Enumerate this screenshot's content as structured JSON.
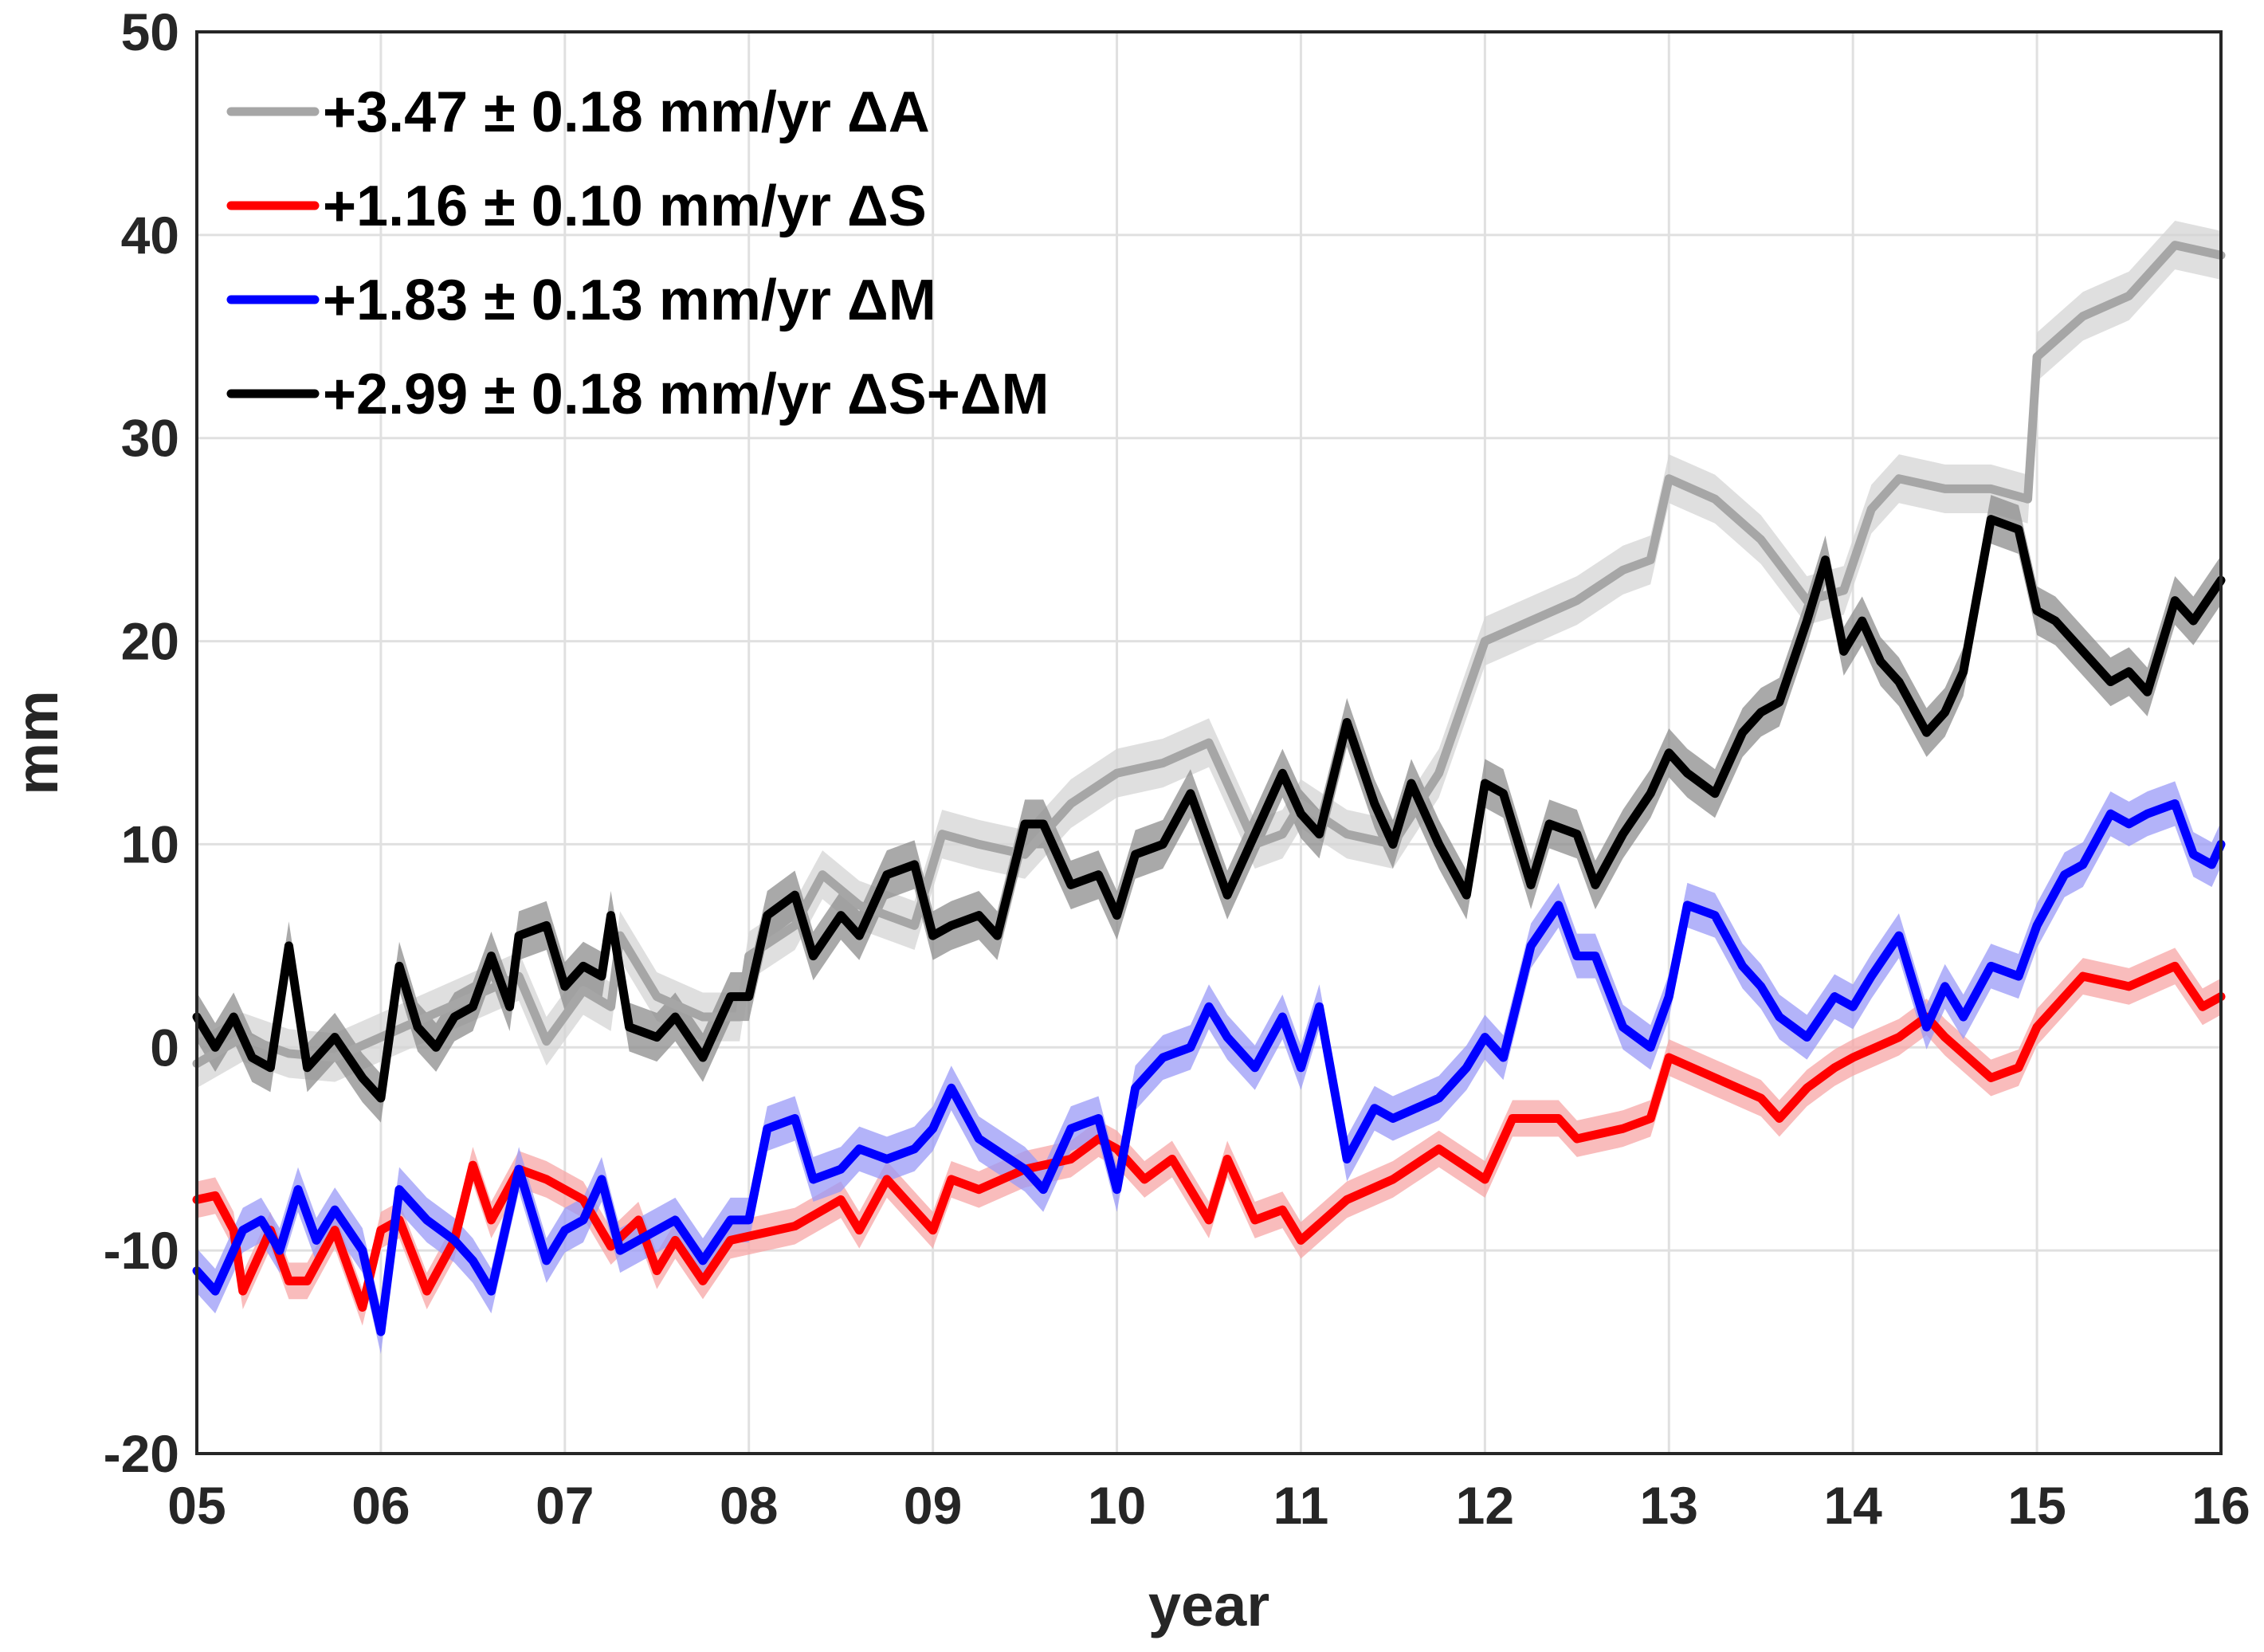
{
  "chart_data": {
    "type": "line",
    "xlabel": "year",
    "ylabel": "mm",
    "xlim": [
      5,
      16
    ],
    "ylim": [
      -20,
      50
    ],
    "xticks": [
      5,
      6,
      7,
      8,
      9,
      10,
      11,
      12,
      13,
      14,
      15,
      16
    ],
    "xtick_labels": [
      "05",
      "06",
      "07",
      "08",
      "09",
      "10",
      "11",
      "12",
      "13",
      "14",
      "15",
      "16"
    ],
    "yticks": [
      -20,
      -10,
      0,
      10,
      20,
      30,
      40,
      50
    ],
    "ytick_labels": [
      "-20",
      "-10",
      "0",
      "10",
      "20",
      "30",
      "40",
      "50"
    ],
    "grid": true,
    "legend_position": "top-left",
    "series": [
      {
        "name": "+3.47 ± 0.18 mm/yr ΔA",
        "color": "#a6a6a6",
        "band_color": "#d4d4d4",
        "band_halfwidth": 1.2,
        "points": [
          [
            5.0,
            -0.8
          ],
          [
            5.25,
            0.5
          ],
          [
            5.5,
            -0.3
          ],
          [
            5.75,
            -0.5
          ],
          [
            6.0,
            0.5
          ],
          [
            6.25,
            1.5
          ],
          [
            6.5,
            2.5
          ],
          [
            6.75,
            3.5
          ],
          [
            6.9,
            0.3
          ],
          [
            7.1,
            2.8
          ],
          [
            7.25,
            2.0
          ],
          [
            7.3,
            5.5
          ],
          [
            7.5,
            2.5
          ],
          [
            7.75,
            1.5
          ],
          [
            7.95,
            1.5
          ],
          [
            8.0,
            4.5
          ],
          [
            8.25,
            6.0
          ],
          [
            8.4,
            8.5
          ],
          [
            8.6,
            7.0
          ],
          [
            8.9,
            6.0
          ],
          [
            9.05,
            10.5
          ],
          [
            9.25,
            10.0
          ],
          [
            9.5,
            9.5
          ],
          [
            9.75,
            12.0
          ],
          [
            10.0,
            13.5
          ],
          [
            10.25,
            14.0
          ],
          [
            10.5,
            15.0
          ],
          [
            10.75,
            10.0
          ],
          [
            10.9,
            10.5
          ],
          [
            11.0,
            12.0
          ],
          [
            11.25,
            10.5
          ],
          [
            11.5,
            10.0
          ],
          [
            11.75,
            13.5
          ],
          [
            12.0,
            20.0
          ],
          [
            12.25,
            21.0
          ],
          [
            12.5,
            22.0
          ],
          [
            12.75,
            23.5
          ],
          [
            12.9,
            24.0
          ],
          [
            13.0,
            28.0
          ],
          [
            13.25,
            27.0
          ],
          [
            13.5,
            25.0
          ],
          [
            13.75,
            22.0
          ],
          [
            13.95,
            22.5
          ],
          [
            14.1,
            26.5
          ],
          [
            14.25,
            28.0
          ],
          [
            14.5,
            27.5
          ],
          [
            14.75,
            27.5
          ],
          [
            14.95,
            27.0
          ],
          [
            15.0,
            34.0
          ],
          [
            15.25,
            36.0
          ],
          [
            15.5,
            37.0
          ],
          [
            15.75,
            39.5
          ],
          [
            16.0,
            39.0
          ]
        ]
      },
      {
        "name": "+1.16 ± 0.10 mm/yr ΔS",
        "color": "#ff0000",
        "band_color": "#f7a6a6",
        "band_halfwidth": 0.9,
        "points": [
          [
            5.0,
            -7.5
          ],
          [
            5.1,
            -7.3
          ],
          [
            5.2,
            -9.0
          ],
          [
            5.25,
            -12.0
          ],
          [
            5.4,
            -9.0
          ],
          [
            5.5,
            -11.5
          ],
          [
            5.6,
            -11.5
          ],
          [
            5.75,
            -9.0
          ],
          [
            5.9,
            -12.8
          ],
          [
            6.0,
            -9.0
          ],
          [
            6.1,
            -8.5
          ],
          [
            6.25,
            -12.0
          ],
          [
            6.4,
            -9.5
          ],
          [
            6.5,
            -5.8
          ],
          [
            6.6,
            -8.5
          ],
          [
            6.75,
            -6.0
          ],
          [
            6.9,
            -6.5
          ],
          [
            7.0,
            -7.0
          ],
          [
            7.1,
            -7.5
          ],
          [
            7.25,
            -9.8
          ],
          [
            7.4,
            -8.5
          ],
          [
            7.5,
            -11.0
          ],
          [
            7.6,
            -9.5
          ],
          [
            7.75,
            -11.5
          ],
          [
            7.9,
            -9.5
          ],
          [
            8.0,
            -9.3
          ],
          [
            8.25,
            -8.8
          ],
          [
            8.5,
            -7.5
          ],
          [
            8.6,
            -9.0
          ],
          [
            8.75,
            -6.5
          ],
          [
            9.0,
            -9.0
          ],
          [
            9.1,
            -6.5
          ],
          [
            9.25,
            -7.0
          ],
          [
            9.5,
            -6.0
          ],
          [
            9.75,
            -5.5
          ],
          [
            9.9,
            -4.5
          ],
          [
            10.0,
            -5.0
          ],
          [
            10.15,
            -6.5
          ],
          [
            10.3,
            -5.5
          ],
          [
            10.5,
            -8.5
          ],
          [
            10.6,
            -5.5
          ],
          [
            10.75,
            -8.5
          ],
          [
            10.9,
            -8.0
          ],
          [
            11.0,
            -9.5
          ],
          [
            11.25,
            -7.5
          ],
          [
            11.5,
            -6.5
          ],
          [
            11.75,
            -5.0
          ],
          [
            12.0,
            -6.5
          ],
          [
            12.15,
            -3.5
          ],
          [
            12.4,
            -3.5
          ],
          [
            12.5,
            -4.5
          ],
          [
            12.75,
            -4.0
          ],
          [
            12.9,
            -3.5
          ],
          [
            13.0,
            -0.5
          ],
          [
            13.25,
            -1.5
          ],
          [
            13.5,
            -2.5
          ],
          [
            13.6,
            -3.5
          ],
          [
            13.75,
            -2.0
          ],
          [
            13.9,
            -1.0
          ],
          [
            14.0,
            -0.5
          ],
          [
            14.25,
            0.5
          ],
          [
            14.4,
            1.5
          ],
          [
            14.5,
            0.5
          ],
          [
            14.75,
            -1.5
          ],
          [
            14.9,
            -1.0
          ],
          [
            15.0,
            1.0
          ],
          [
            15.25,
            3.5
          ],
          [
            15.5,
            3.0
          ],
          [
            15.75,
            4.0
          ],
          [
            15.9,
            2.0
          ],
          [
            16.0,
            2.5
          ]
        ]
      },
      {
        "name": "+1.83 ± 0.13 mm/yr ΔM",
        "color": "#0000ff",
        "band_color": "#9999f7",
        "band_halfwidth": 1.1,
        "points": [
          [
            5.0,
            -11.0
          ],
          [
            5.1,
            -12.0
          ],
          [
            5.25,
            -9.0
          ],
          [
            5.35,
            -8.5
          ],
          [
            5.45,
            -10.0
          ],
          [
            5.55,
            -7.0
          ],
          [
            5.65,
            -9.5
          ],
          [
            5.75,
            -8.0
          ],
          [
            5.9,
            -10.0
          ],
          [
            6.0,
            -14.0
          ],
          [
            6.1,
            -7.0
          ],
          [
            6.25,
            -8.5
          ],
          [
            6.4,
            -9.5
          ],
          [
            6.5,
            -10.5
          ],
          [
            6.6,
            -12.0
          ],
          [
            6.75,
            -6.0
          ],
          [
            6.9,
            -10.5
          ],
          [
            7.0,
            -9.0
          ],
          [
            7.1,
            -8.5
          ],
          [
            7.2,
            -6.5
          ],
          [
            7.3,
            -10.0
          ],
          [
            7.5,
            -9.0
          ],
          [
            7.6,
            -8.5
          ],
          [
            7.75,
            -10.5
          ],
          [
            7.9,
            -8.5
          ],
          [
            8.0,
            -8.5
          ],
          [
            8.1,
            -4.0
          ],
          [
            8.25,
            -3.5
          ],
          [
            8.35,
            -6.5
          ],
          [
            8.5,
            -6.0
          ],
          [
            8.6,
            -5.0
          ],
          [
            8.75,
            -5.5
          ],
          [
            8.9,
            -5.0
          ],
          [
            9.0,
            -4.0
          ],
          [
            9.1,
            -2.0
          ],
          [
            9.25,
            -4.5
          ],
          [
            9.5,
            -6.0
          ],
          [
            9.6,
            -7.0
          ],
          [
            9.75,
            -4.0
          ],
          [
            9.9,
            -3.5
          ],
          [
            10.0,
            -7.0
          ],
          [
            10.1,
            -2.0
          ],
          [
            10.25,
            -0.5
          ],
          [
            10.4,
            0.0
          ],
          [
            10.5,
            2.0
          ],
          [
            10.6,
            0.5
          ],
          [
            10.75,
            -1.0
          ],
          [
            10.9,
            1.5
          ],
          [
            11.0,
            -1.0
          ],
          [
            11.1,
            2.0
          ],
          [
            11.25,
            -5.5
          ],
          [
            11.4,
            -3.0
          ],
          [
            11.5,
            -3.5
          ],
          [
            11.75,
            -2.5
          ],
          [
            11.9,
            -1.0
          ],
          [
            12.0,
            0.5
          ],
          [
            12.1,
            -0.5
          ],
          [
            12.25,
            5.0
          ],
          [
            12.4,
            7.0
          ],
          [
            12.5,
            4.5
          ],
          [
            12.6,
            4.5
          ],
          [
            12.75,
            1.0
          ],
          [
            12.9,
            0.0
          ],
          [
            13.0,
            2.5
          ],
          [
            13.1,
            7.0
          ],
          [
            13.25,
            6.5
          ],
          [
            13.4,
            4.0
          ],
          [
            13.5,
            3.0
          ],
          [
            13.6,
            1.5
          ],
          [
            13.75,
            0.5
          ],
          [
            13.9,
            2.5
          ],
          [
            14.0,
            2.0
          ],
          [
            14.1,
            3.5
          ],
          [
            14.25,
            5.5
          ],
          [
            14.4,
            1.0
          ],
          [
            14.5,
            3.0
          ],
          [
            14.6,
            1.5
          ],
          [
            14.75,
            4.0
          ],
          [
            14.9,
            3.5
          ],
          [
            15.0,
            6.0
          ],
          [
            15.15,
            8.5
          ],
          [
            15.25,
            9.0
          ],
          [
            15.4,
            11.5
          ],
          [
            15.5,
            11.0
          ],
          [
            15.6,
            11.5
          ],
          [
            15.75,
            12.0
          ],
          [
            15.85,
            9.5
          ],
          [
            15.95,
            9.0
          ],
          [
            16.0,
            10.0
          ]
        ]
      },
      {
        "name": "+2.99 ± 0.18 mm/yr ΔS+ΔM",
        "color": "#000000",
        "band_color": "#8c8c8c",
        "band_halfwidth": 1.2,
        "points": [
          [
            5.0,
            1.5
          ],
          [
            5.1,
            0.0
          ],
          [
            5.2,
            1.5
          ],
          [
            5.3,
            -0.5
          ],
          [
            5.4,
            -1.0
          ],
          [
            5.5,
            5.0
          ],
          [
            5.6,
            -1.0
          ],
          [
            5.75,
            0.5
          ],
          [
            5.9,
            -1.5
          ],
          [
            6.0,
            -2.5
          ],
          [
            6.1,
            4.0
          ],
          [
            6.2,
            1.0
          ],
          [
            6.3,
            0.0
          ],
          [
            6.4,
            1.5
          ],
          [
            6.5,
            2.0
          ],
          [
            6.6,
            4.5
          ],
          [
            6.7,
            2.0
          ],
          [
            6.75,
            5.5
          ],
          [
            6.9,
            6.0
          ],
          [
            7.0,
            3.0
          ],
          [
            7.1,
            4.0
          ],
          [
            7.2,
            3.5
          ],
          [
            7.25,
            6.5
          ],
          [
            7.35,
            1.0
          ],
          [
            7.5,
            0.5
          ],
          [
            7.6,
            1.5
          ],
          [
            7.75,
            -0.5
          ],
          [
            7.9,
            2.5
          ],
          [
            8.0,
            2.5
          ],
          [
            8.1,
            6.5
          ],
          [
            8.25,
            7.5
          ],
          [
            8.35,
            4.5
          ],
          [
            8.5,
            6.5
          ],
          [
            8.6,
            5.5
          ],
          [
            8.75,
            8.5
          ],
          [
            8.9,
            9.0
          ],
          [
            9.0,
            5.5
          ],
          [
            9.1,
            6.0
          ],
          [
            9.25,
            6.5
          ],
          [
            9.35,
            5.5
          ],
          [
            9.5,
            11.0
          ],
          [
            9.6,
            11.0
          ],
          [
            9.75,
            8.0
          ],
          [
            9.9,
            8.5
          ],
          [
            10.0,
            6.5
          ],
          [
            10.1,
            9.5
          ],
          [
            10.25,
            10.0
          ],
          [
            10.4,
            12.5
          ],
          [
            10.5,
            10.0
          ],
          [
            10.6,
            7.5
          ],
          [
            10.75,
            10.5
          ],
          [
            10.9,
            13.5
          ],
          [
            11.0,
            11.5
          ],
          [
            11.1,
            10.5
          ],
          [
            11.25,
            16.0
          ],
          [
            11.4,
            12.0
          ],
          [
            11.5,
            10.0
          ],
          [
            11.6,
            13.0
          ],
          [
            11.75,
            10.0
          ],
          [
            11.9,
            7.5
          ],
          [
            12.0,
            13.0
          ],
          [
            12.1,
            12.5
          ],
          [
            12.25,
            8.0
          ],
          [
            12.35,
            11.0
          ],
          [
            12.5,
            10.5
          ],
          [
            12.6,
            8.0
          ],
          [
            12.75,
            10.5
          ],
          [
            12.9,
            12.5
          ],
          [
            13.0,
            14.5
          ],
          [
            13.1,
            13.5
          ],
          [
            13.25,
            12.5
          ],
          [
            13.4,
            15.5
          ],
          [
            13.5,
            16.5
          ],
          [
            13.6,
            17.0
          ],
          [
            13.75,
            21.0
          ],
          [
            13.85,
            24.0
          ],
          [
            13.95,
            19.5
          ],
          [
            14.05,
            21.0
          ],
          [
            14.15,
            19.0
          ],
          [
            14.25,
            18.0
          ],
          [
            14.4,
            15.5
          ],
          [
            14.5,
            16.5
          ],
          [
            14.6,
            18.5
          ],
          [
            14.75,
            26.0
          ],
          [
            14.9,
            25.5
          ],
          [
            15.0,
            21.5
          ],
          [
            15.1,
            21.0
          ],
          [
            15.25,
            19.5
          ],
          [
            15.4,
            18.0
          ],
          [
            15.5,
            18.5
          ],
          [
            15.6,
            17.5
          ],
          [
            15.75,
            22.0
          ],
          [
            15.85,
            21.0
          ],
          [
            16.0,
            23.0
          ]
        ]
      }
    ]
  }
}
